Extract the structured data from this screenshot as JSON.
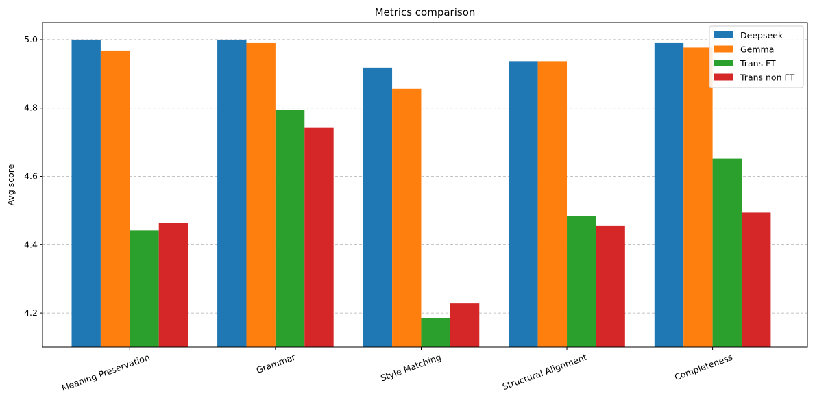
{
  "chart_data": {
    "type": "bar",
    "title": "Metrics comparison",
    "xlabel": "",
    "ylabel": "Avg score",
    "categories": [
      "Meaning Preservation",
      "Grammar",
      "Style Matching",
      "Structural Alignment",
      "Completeness"
    ],
    "series": [
      {
        "name": "Deepseek",
        "color": "#1f77b4",
        "values": [
          5.0,
          5.0,
          4.918,
          4.937,
          4.99
        ]
      },
      {
        "name": "Gemma",
        "color": "#ff7f0e",
        "values": [
          4.968,
          4.99,
          4.856,
          4.937,
          4.977
        ]
      },
      {
        "name": "Trans FT",
        "color": "#2ca02c",
        "values": [
          4.442,
          4.794,
          4.186,
          4.484,
          4.652
        ]
      },
      {
        "name": "Trans non FT",
        "color": "#d62728",
        "values": [
          4.464,
          4.742,
          4.228,
          4.455,
          4.494
        ]
      }
    ],
    "ylim": [
      4.1,
      5.05
    ],
    "yticks": [
      "4.2",
      "4.4",
      "4.6",
      "4.8",
      "5.0"
    ],
    "grid": "y-dashed",
    "legend_position": "top-right",
    "xtick_rotation": "20"
  }
}
